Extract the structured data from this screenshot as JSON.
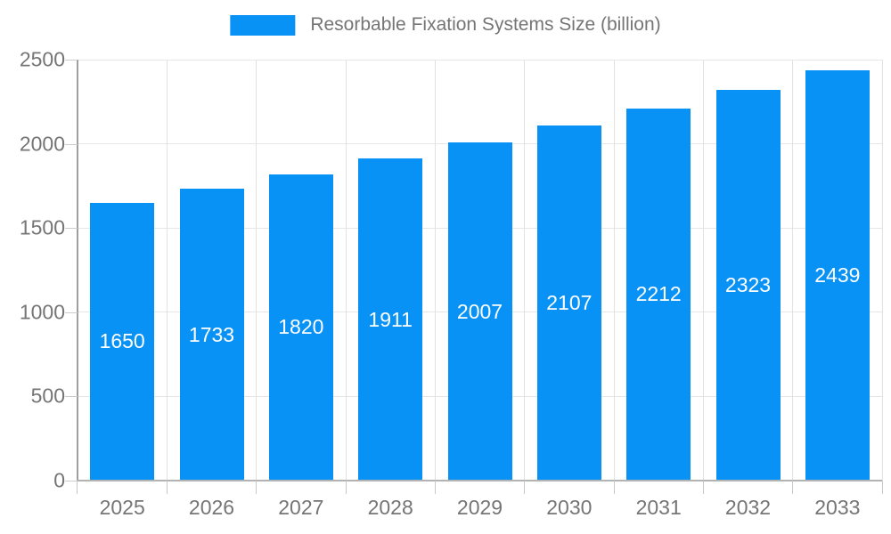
{
  "chart_data": {
    "type": "bar",
    "title": "",
    "xlabel": "",
    "ylabel": "",
    "legend": {
      "position": "top",
      "label": "Resorbable Fixation Systems Size (billion)"
    },
    "categories": [
      "2025",
      "2026",
      "2027",
      "2028",
      "2029",
      "2030",
      "2031",
      "2032",
      "2033"
    ],
    "values": [
      1650,
      1733,
      1820,
      1911,
      2007,
      2107,
      2212,
      2323,
      2439
    ],
    "value_labels_shown": true,
    "value_label_position": "inside-center",
    "ylim": [
      0,
      2500
    ],
    "yticks": [
      0,
      500,
      1000,
      1500,
      2000,
      2500
    ],
    "grid": true
  },
  "colors": {
    "bar": "#0992f5",
    "value_label": "#ffffff",
    "axis_label": "#757575",
    "legend_text": "#757575",
    "gridline": "#e6e6e6",
    "axis_line": "#9e9e9e",
    "background": "#ffffff"
  }
}
